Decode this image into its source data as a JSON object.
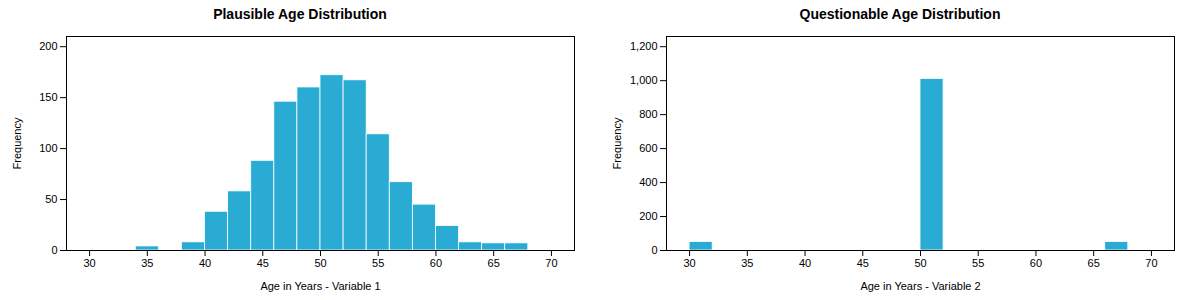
{
  "chart_data": [
    {
      "type": "histogram",
      "title": "Plausible Age Distribution",
      "xlabel": "Age in Years - Variable 1",
      "ylabel": "Frequency",
      "bins": [
        34,
        36,
        38,
        40,
        42,
        44,
        46,
        48,
        50,
        52,
        54,
        56,
        58,
        60,
        62,
        64,
        66,
        68
      ],
      "values": [
        4,
        0,
        8,
        38,
        58,
        88,
        146,
        160,
        172,
        167,
        114,
        67,
        45,
        24,
        8,
        7,
        7
      ],
      "color": "#29ABD4",
      "xlim": [
        28,
        72
      ],
      "xticks": [
        30,
        35,
        40,
        45,
        50,
        55,
        60,
        65,
        70
      ],
      "ylim": [
        0,
        210
      ],
      "yticks": [
        0,
        50,
        100,
        150,
        200
      ],
      "grid": false
    },
    {
      "type": "histogram",
      "title": "Questionable Age Distribution",
      "xlabel": "Age in Years - Variable 2",
      "ylabel": "Frequency",
      "bins": [
        30,
        32,
        34,
        36,
        38,
        40,
        42,
        44,
        46,
        48,
        50,
        52,
        54,
        56,
        58,
        60,
        62,
        64,
        66,
        68
      ],
      "values": [
        50,
        0,
        0,
        0,
        0,
        0,
        0,
        0,
        0,
        0,
        1010,
        0,
        0,
        0,
        0,
        0,
        0,
        0,
        50
      ],
      "color": "#29ABD4",
      "xlim": [
        28,
        72
      ],
      "xticks": [
        30,
        35,
        40,
        45,
        50,
        55,
        60,
        65,
        70
      ],
      "ylim": [
        0,
        1260
      ],
      "yticks": [
        0,
        200,
        400,
        600,
        800,
        {
          "value": 1000,
          "label": "1,000"
        },
        {
          "value": 1200,
          "label": "1,200"
        }
      ],
      "grid": false
    }
  ]
}
